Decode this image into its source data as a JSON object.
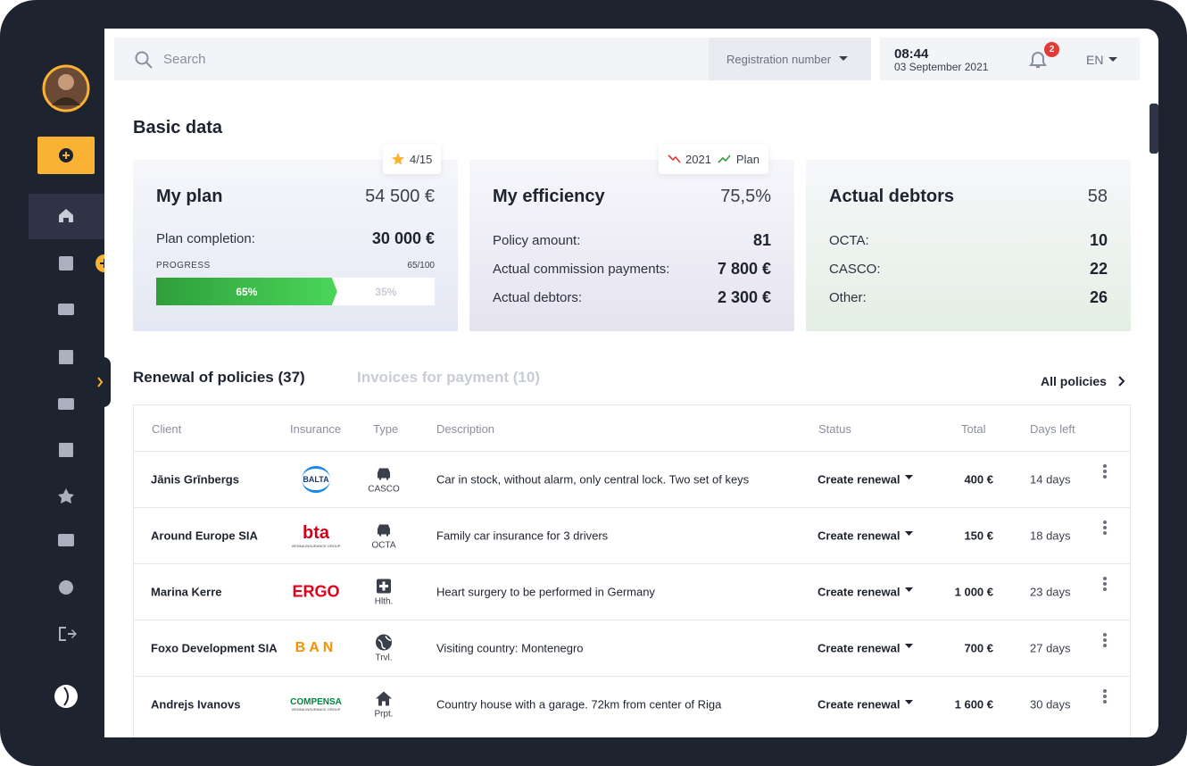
{
  "search": {
    "placeholder": "Search",
    "registration": "Registration number"
  },
  "header": {
    "time": "08:44",
    "date": "03 September 2021",
    "notifications": "2",
    "language": "EN"
  },
  "basic_data": {
    "title": "Basic data",
    "plan": {
      "badge": "4/15",
      "title": "My plan",
      "total": "54 500 €",
      "completion_label": "Plan completion:",
      "completion": "30 000 €",
      "progress_label": "PROGRESS",
      "progress_count": "65/100",
      "done": "65%",
      "left": "35%"
    },
    "efficiency": {
      "legend": [
        "2021",
        "Plan"
      ],
      "title": "My efficiency",
      "total": "75,5%",
      "rows": [
        [
          "Policy amount:",
          81
        ],
        [
          "Actual commission payments:",
          "7 800 €"
        ],
        [
          "Actual debtors:",
          "2 300 €"
        ]
      ]
    },
    "debtors": {
      "title": "Actual debtors",
      "total": 58,
      "rows": [
        [
          "OCTA:",
          10
        ],
        [
          "CASCO:",
          22
        ],
        [
          "Other:",
          26
        ]
      ]
    }
  },
  "renewals": {
    "tab": "Renewal of policies (37)",
    "other_tab": "Invoices for payment (10)",
    "link": "All policies",
    "columns": [
      "Client",
      "Insurance",
      "Type",
      "Description",
      "Status",
      "Total",
      "Days left"
    ],
    "rows": [
      {
        "client": "Jānis Grīnbergs",
        "insurer": "BALTA",
        "type": "CASCO",
        "description": "Car in stock, without alarm, only central lock. Two set of keys",
        "status": "Create renewal",
        "total": "400 €",
        "days": "14 days"
      },
      {
        "client": "Around Europe SIA",
        "insurer": "bta",
        "insurer_group": "VIENNA INSURANCE GROUP",
        "type": "OCTA",
        "description": "Family car insurance for 3 drivers",
        "status": "Create renewal",
        "total": "150 €",
        "days": "18 days"
      },
      {
        "client": "Marina Kerre",
        "insurer": "ERGO",
        "type": "Hlth.",
        "description": "Heart surgery to be performed in Germany",
        "status": "Create renewal",
        "total": "1 000 €",
        "days": "23 days"
      },
      {
        "client": "Foxo Development SIA",
        "insurer": "BAN",
        "type": "Trvl.",
        "description": "Visiting country: Montenegro",
        "status": "Create renewal",
        "total": "700 €",
        "days": "27 days"
      },
      {
        "client": "Andrejs Ivanovs",
        "insurer": "COMPENSA",
        "insurer_group": "VIENNA INSURANCE GROUP",
        "type": "Prpt.",
        "description": "Country house with a garage. 72km from center of Riga",
        "status": "Create renewal",
        "total": "1 600 €",
        "days": "30 days"
      }
    ]
  }
}
